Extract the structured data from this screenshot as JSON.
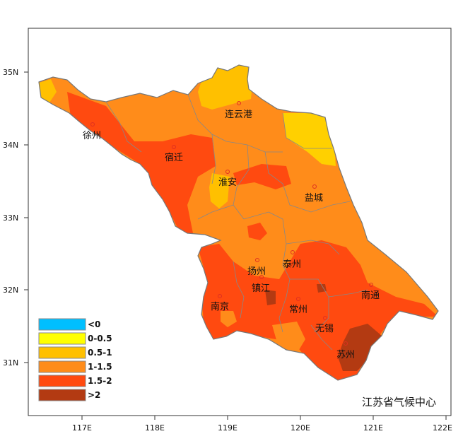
{
  "map": {
    "credit": "江苏省气候中心",
    "lat_labels": [
      "35N",
      "34N",
      "33N",
      "32N",
      "31N"
    ],
    "lon_labels": [
      "117E",
      "118E",
      "119E",
      "120E",
      "121E",
      "122E"
    ],
    "cities": [
      {
        "name": "徐州"
      },
      {
        "name": "连云港"
      },
      {
        "name": "宿迁"
      },
      {
        "name": "淮安"
      },
      {
        "name": "盐城"
      },
      {
        "name": "扬州"
      },
      {
        "name": "泰州"
      },
      {
        "name": "镇江"
      },
      {
        "name": "南京"
      },
      {
        "name": "常州"
      },
      {
        "name": "南通"
      },
      {
        "name": "无锡"
      },
      {
        "name": "苏州"
      }
    ],
    "legend": [
      {
        "label": "<0",
        "color": "#00bfff"
      },
      {
        "label": "0-0.5",
        "color": "#ffff00"
      },
      {
        "label": "0.5-1",
        "color": "#ffc000"
      },
      {
        "label": "1-1.5",
        "color": "#ff8c1a"
      },
      {
        "label": "1.5-2",
        "color": "#ff4a10"
      },
      {
        "label": ">2",
        "color": "#b33a12"
      }
    ]
  }
}
